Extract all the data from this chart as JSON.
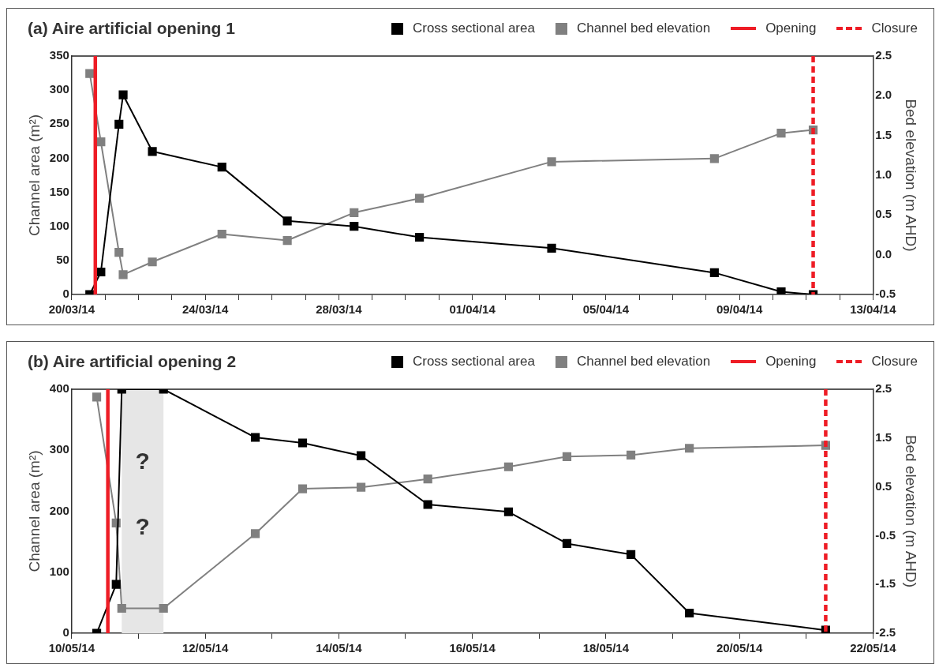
{
  "chart_data": [
    {
      "type": "line",
      "title": "(a) Aire artificial opening 1",
      "ylabel": "Channel area (m²)",
      "y2label": "Bed elevation (m AHD)",
      "x": [
        "--03-20T13:00",
        "--03-20T21:00",
        "--03-21T10:00",
        "--03-21T13:00",
        "--03-22T10:00",
        "--03-24T12:00",
        "--03-26T11:00",
        "--03-28T11:00",
        "--03-30T10:00",
        "--04-03T09:00",
        "--04-08T06:00",
        "--04-10T06:00",
        "--04-11T05:00"
      ],
      "series": [
        {
          "name": "Cross sectional area",
          "color": "#000000",
          "values": [
            0,
            33,
            250,
            293,
            210,
            187,
            108,
            100,
            84,
            68,
            32,
            4,
            0
          ]
        },
        {
          "name": "Channel bed elevation",
          "color": "#808080",
          "axis": "y2",
          "values": [
            2.28,
            1.42,
            0.03,
            -0.25,
            -0.09,
            0.26,
            0.18,
            0.53,
            0.71,
            1.17,
            1.21,
            1.53,
            1.57
          ]
        }
      ],
      "xlim": [
        "--03-20",
        "--04-13"
      ],
      "xticks": [
        {
          "value": "--03-20",
          "label": "20/03/14"
        },
        {
          "value": "--03-21",
          "label": null
        },
        {
          "value": "--03-22",
          "label": null
        },
        {
          "value": "--03-23",
          "label": null
        },
        {
          "value": "--03-24",
          "label": "24/03/14"
        },
        {
          "value": "--03-25",
          "label": null
        },
        {
          "value": "--03-26",
          "label": null
        },
        {
          "value": "--03-27",
          "label": null
        },
        {
          "value": "--03-28",
          "label": "28/03/14"
        },
        {
          "value": "--03-29",
          "label": null
        },
        {
          "value": "--03-30",
          "label": null
        },
        {
          "value": "--03-31",
          "label": null
        },
        {
          "value": "--04-01",
          "label": "01/04/14"
        },
        {
          "value": "--04-02",
          "label": null
        },
        {
          "value": "--04-03",
          "label": null
        },
        {
          "value": "--04-04",
          "label": null
        },
        {
          "value": "--04-05",
          "label": "05/04/14"
        },
        {
          "value": "--04-06",
          "label": null
        },
        {
          "value": "--04-07",
          "label": null
        },
        {
          "value": "--04-08",
          "label": null
        },
        {
          "value": "--04-09",
          "label": "09/04/14"
        },
        {
          "value": "--04-10",
          "label": null
        },
        {
          "value": "--04-11",
          "label": null
        },
        {
          "value": "--04-12",
          "label": null
        },
        {
          "value": "--04-13",
          "label": "13/04/14"
        }
      ],
      "ylim": [
        0,
        350
      ],
      "yticks": [
        0,
        50,
        100,
        150,
        200,
        250,
        300,
        350
      ],
      "y2lim": [
        -0.5,
        2.5
      ],
      "y2ticks": [
        -0.5,
        {
          "value": 0,
          "label": "0.0"
        },
        0.5,
        {
          "value": 1,
          "label": "1.0"
        },
        1.5,
        {
          "value": 2,
          "label": "2.0"
        },
        2.5
      ],
      "ref_lines": [
        {
          "axis": "x",
          "value": "--03-20T17:00",
          "label": "Opening",
          "color": "#ee1c25",
          "line_style": "solid"
        },
        {
          "axis": "x",
          "value": "--04-11T05:00",
          "label": "Closure",
          "color": "#ee1c25",
          "line_style": "dashed"
        }
      ],
      "marker": "square",
      "grid": false,
      "legend": "top right"
    },
    {
      "type": "line",
      "title": "(b) Aire artificial opening 2",
      "ylabel": "Channel area (m²)",
      "y2label": "Bed elevation (m AHD)",
      "x": [
        "--05-10T09:00",
        "--05-10T16:00",
        "--05-10T18:00",
        "--05-11T09:00",
        "--05-12T18:00",
        "--05-13T11:00",
        "--05-14T08:00",
        "--05-15T08:00",
        "--05-16T13:00",
        "--05-17T10:00",
        "--05-18T09:00",
        "--05-19T06:00",
        "--05-21T07:00"
      ],
      "series": [
        {
          "name": "Cross sectional area",
          "color": "#000000",
          "values": [
            0,
            80,
            400,
            400,
            321,
            312,
            291,
            211,
            199,
            147,
            129,
            33,
            5
          ]
        },
        {
          "name": "Channel bed elevation",
          "color": "#808080",
          "axis": "y2",
          "values": [
            2.34,
            -0.24,
            -1.99,
            -1.99,
            -0.46,
            0.46,
            0.49,
            0.66,
            0.91,
            1.12,
            1.15,
            1.29,
            1.35
          ]
        }
      ],
      "xlim": [
        "--05-10",
        "--05-22"
      ],
      "xticks": [
        {
          "value": "--05-10",
          "label": "10/05/14"
        },
        {
          "value": "--05-11",
          "label": null
        },
        {
          "value": "--05-12",
          "label": "12/05/14"
        },
        {
          "value": "--05-13",
          "label": null
        },
        {
          "value": "--05-14",
          "label": "14/05/14"
        },
        {
          "value": "--05-15",
          "label": null
        },
        {
          "value": "--05-16",
          "label": "16/05/14"
        },
        {
          "value": "--05-17",
          "label": null
        },
        {
          "value": "--05-18",
          "label": "18/05/14"
        },
        {
          "value": "--05-19",
          "label": null
        },
        {
          "value": "--05-20",
          "label": "20/05/14"
        },
        {
          "value": "--05-21",
          "label": null
        },
        {
          "value": "--05-22",
          "label": "22/05/14"
        }
      ],
      "ylim": [
        0,
        400
      ],
      "yticks": [
        0,
        100,
        200,
        300,
        400
      ],
      "y2lim": [
        -2.5,
        2.5
      ],
      "y2ticks": [
        -2.5,
        -1.5,
        -0.5,
        0.5,
        1.5,
        2.5
      ],
      "ref_lines": [
        {
          "axis": "x",
          "value": "--05-10T13:00",
          "label": "Opening",
          "color": "#ee1c25",
          "line_style": "solid"
        },
        {
          "axis": "x",
          "value": "--05-21T07:00",
          "label": "Closure",
          "color": "#ee1c25",
          "line_style": "dashed"
        }
      ],
      "bands": [
        {
          "axis": "x",
          "from": "--05-10T18:00",
          "to": "--05-11T09:00",
          "color": "#e6e6e6"
        }
      ],
      "annotations": [
        "?",
        "?"
      ],
      "marker": "square",
      "grid": false,
      "legend": "top right"
    }
  ]
}
